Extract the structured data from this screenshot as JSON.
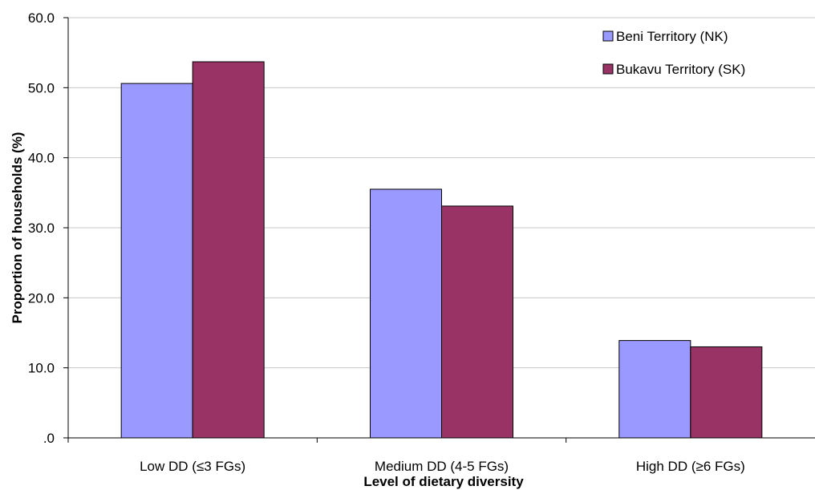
{
  "chart_data": {
    "type": "bar",
    "categories": [
      "Low DD (≤3 FGs)",
      "Medium DD (4-5 FGs)",
      "High DD (≥6 FGs)"
    ],
    "series": [
      {
        "name": "Beni Territory (NK)",
        "values": [
          50.6,
          35.5,
          13.9
        ],
        "color": "#9999ff"
      },
      {
        "name": "Bukavu Territory (SK)",
        "values": [
          53.7,
          33.1,
          13.0
        ],
        "color": "#993366"
      }
    ],
    "xlabel": "Level of dietary diversity",
    "ylabel": "Proportion of households (%)",
    "ylim": [
      0,
      60
    ],
    "yticks": [
      0,
      10,
      20,
      30,
      40,
      50,
      60
    ],
    "ytick_labels": [
      ".0",
      "10.0",
      "20.0",
      "30.0",
      "40.0",
      "50.0",
      "60.0"
    ],
    "grid": true,
    "legend_position": "top-right"
  }
}
